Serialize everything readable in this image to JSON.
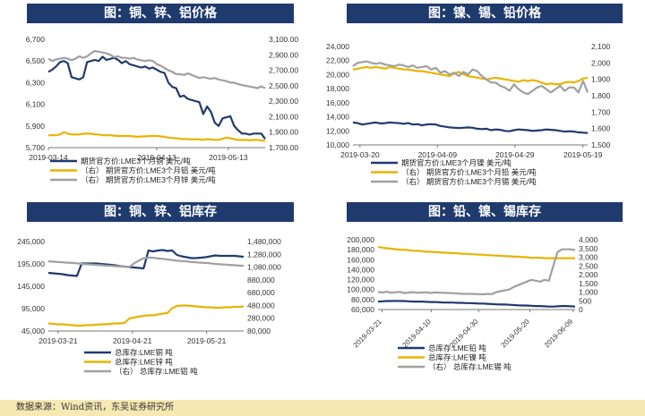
{
  "source_text": "数据来源：Wind资讯，东吴证券研究所",
  "colors": {
    "header_bg": "#1f3b6e",
    "navy": "#1f3b6e",
    "gold": "#e8b400",
    "gray": "#a0a0a0"
  },
  "chart_data": [
    {
      "id": "c1",
      "type": "line",
      "title": "图：铜、锌、铝价格",
      "x_ticks": [
        "2019-03-14",
        "2019-04-13",
        "2019-05-13"
      ],
      "y_left": {
        "min": 5700,
        "max": 6700,
        "ticks": [
          "6,700",
          "6,500",
          "6,300",
          "6,100",
          "5,900",
          "5,700"
        ]
      },
      "y_right": {
        "min": 1700,
        "max": 3100,
        "ticks": [
          "3,100.00",
          "2,900.00",
          "2,700.00",
          "2,500.00",
          "2,300.00",
          "2,100.00",
          "1,900.00",
          "1,700.00"
        ]
      },
      "legend": [
        "期货官方价:LME3个月铜  美元/吨",
        "（右）  期货官方价:LME3个月铝  美元/吨",
        "（右）  期货官方价:LME3个月锌  美元/吨"
      ],
      "series": [
        {
          "name": "期货官方价:LME3个月铜  美元/吨",
          "axis": "left",
          "color": "navy",
          "values": [
            6400,
            6420,
            6450,
            6490,
            6500,
            6480,
            6350,
            6340,
            6330,
            6350,
            6490,
            6500,
            6510,
            6500,
            6540,
            6510,
            6520,
            6530,
            6510,
            6480,
            6500,
            6470,
            6460,
            6450,
            6440,
            6450,
            6430,
            6440,
            6420,
            6400,
            6390,
            6300,
            6260,
            6250,
            6170,
            6180,
            6150,
            6140,
            6130,
            6120,
            6010,
            6080,
            6030,
            5930,
            5900,
            5970,
            5980,
            5990,
            5900,
            5860,
            5830,
            5830,
            5820,
            5830,
            5830,
            5830,
            5780
          ]
        },
        {
          "name": "（右）  期货官方价:LME3个月铝  美元/吨",
          "axis": "right",
          "color": "gold",
          "values": [
            1860,
            1860,
            1860,
            1870,
            1900,
            1880,
            1870,
            1870,
            1870,
            1880,
            1880,
            1880,
            1870,
            1870,
            1860,
            1860,
            1860,
            1855,
            1850,
            1850,
            1850,
            1850,
            1845,
            1840,
            1845,
            1845,
            1850,
            1850,
            1850,
            1845,
            1840,
            1830,
            1825,
            1820,
            1815,
            1810,
            1810,
            1805,
            1810,
            1805,
            1800,
            1810,
            1805,
            1800,
            1800,
            1815,
            1830,
            1820,
            1810,
            1800,
            1800,
            1800,
            1795,
            1800,
            1800,
            1790,
            1790
          ]
        },
        {
          "name": "（右）  期货官方价:LME3个月锌  美元/吨",
          "axis": "right",
          "color": "gray",
          "values": [
            2850,
            2820,
            2840,
            2850,
            2860,
            2850,
            2830,
            2850,
            2880,
            2860,
            2880,
            2920,
            2950,
            2940,
            2930,
            2920,
            2900,
            2870,
            2880,
            2860,
            2860,
            2850,
            2860,
            2840,
            2830,
            2820,
            2830,
            2820,
            2780,
            2760,
            2730,
            2700,
            2680,
            2650,
            2650,
            2640,
            2660,
            2640,
            2620,
            2600,
            2610,
            2600,
            2590,
            2600,
            2580,
            2570,
            2560,
            2540,
            2540,
            2520,
            2510,
            2500,
            2490,
            2480,
            2470,
            2490,
            2470
          ]
        }
      ]
    },
    {
      "id": "c2",
      "type": "line",
      "title": "图：镍、锡、铅价格",
      "x_ticks": [
        "2019-03-20",
        "2019-04-09",
        "2019-04-29",
        "2019-05-19"
      ],
      "y_left": {
        "min": 10000,
        "max": 24000,
        "ticks": [
          "24,000",
          "22,000",
          "20,000",
          "18,000",
          "16,000",
          "14,000",
          "12,000",
          "10,000"
        ]
      },
      "y_right": {
        "min": 1500,
        "max": 2100,
        "ticks": [
          "2,100",
          "2,000",
          "1,900",
          "1,800",
          "1,700",
          "1,600",
          "1,500"
        ]
      },
      "legend": [
        "期货官方价:LME3个月镍  美元/吨",
        "（右）  期货官方价:LME3个月铅  美元/吨",
        "（右）  期货官方价:LME3个月锡  美元/吨"
      ],
      "series": [
        {
          "name": "期货官方价:LME3个月镍  美元/吨",
          "axis": "left",
          "color": "navy",
          "values": [
            13200,
            13100,
            12900,
            13000,
            13100,
            13200,
            13050,
            13100,
            13200,
            13150,
            13100,
            13000,
            13100,
            12900,
            12950,
            12800,
            12900,
            12950,
            12900,
            12700,
            12600,
            12500,
            12450,
            12400,
            12450,
            12500,
            12450,
            12300,
            12250,
            12300,
            12100,
            12200,
            12150,
            12000,
            11950,
            12100,
            12200,
            12150,
            12100,
            12000,
            12050,
            12100,
            12200,
            12150,
            12100,
            12000,
            11900,
            11950,
            11900,
            11800,
            11750,
            11700
          ]
        },
        {
          "name": "（右）  期货官方价:LME3个月铅  美元/吨",
          "axis": "right",
          "color": "gold",
          "values": [
            1960,
            1965,
            1970,
            1975,
            1970,
            1975,
            1970,
            1965,
            1975,
            1970,
            1965,
            1960,
            1960,
            1955,
            1950,
            1950,
            1945,
            1940,
            1935,
            1930,
            1925,
            1920,
            1935,
            1945,
            1930,
            1920,
            1915,
            1910,
            1905,
            1900,
            1905,
            1910,
            1905,
            1900,
            1895,
            1890,
            1885,
            1895,
            1890,
            1895,
            1890,
            1880,
            1870,
            1875,
            1870,
            1870,
            1880,
            1885,
            1880,
            1890,
            1905,
            1910
          ]
        },
        {
          "name": "（右）  期货官方价:LME3个月锡  美元/吨",
          "axis": "right",
          "color": "gray",
          "values": [
            1980,
            2000,
            2005,
            2010,
            2000,
            1995,
            2000,
            1990,
            1985,
            1980,
            1990,
            1985,
            1975,
            1985,
            1970,
            1975,
            1980,
            1960,
            1970,
            1940,
            1950,
            1930,
            1940,
            1920,
            1945,
            1930,
            1960,
            1950,
            1920,
            1900,
            1880,
            1880,
            1860,
            1850,
            1830,
            1870,
            1840,
            1820,
            1810,
            1830,
            1850,
            1860,
            1840,
            1820,
            1840,
            1860,
            1830,
            1850,
            1850,
            1820,
            1890,
            1820
          ]
        }
      ]
    },
    {
      "id": "c3",
      "type": "line",
      "title": "图：铜、锌、铝库存",
      "x_ticks": [
        "2019-03-21",
        "2019-04-21",
        "2019-05-21"
      ],
      "y_left": {
        "min": 45000,
        "max": 245000,
        "ticks": [
          "245,000",
          "195,000",
          "145,000",
          "95,000",
          "45,000"
        ]
      },
      "y_right": {
        "min": 80000,
        "max": 1480000,
        "ticks": [
          "1,480,000",
          "1,280,000",
          "1,080,000",
          "880,000",
          "680,000",
          "480,000",
          "280,000",
          "80,000"
        ]
      },
      "legend": [
        "总库存:LME铜  吨",
        "总库存:LME锌  吨",
        "（右）  总库存:LME铝  吨"
      ],
      "series": [
        {
          "name": "总库存:LME铜  吨",
          "axis": "left",
          "color": "navy",
          "values": [
            175000,
            174000,
            173000,
            172000,
            170000,
            169000,
            168000,
            196000,
            196000,
            196000,
            196000,
            195000,
            194000,
            193000,
            192000,
            190000,
            189000,
            188000,
            187000,
            186000,
            185000,
            225000,
            223000,
            225000,
            226000,
            224000,
            225000,
            215000,
            212000,
            210000,
            208000,
            208000,
            209000,
            210000,
            212000,
            214000,
            213000,
            213000,
            213000,
            213000,
            212000,
            211000
          ]
        },
        {
          "name": "总库存:LME锌  吨",
          "axis": "left",
          "color": "gold",
          "values": [
            62000,
            61000,
            60000,
            60000,
            59000,
            58000,
            57000,
            57000,
            58000,
            58000,
            59000,
            60000,
            60000,
            61000,
            62000,
            62000,
            63000,
            73000,
            75000,
            77000,
            79000,
            80000,
            80000,
            82000,
            84000,
            85000,
            96000,
            101000,
            102000,
            102000,
            101000,
            100000,
            99000,
            98000,
            98000,
            97000,
            97000,
            98000,
            98000,
            99000,
            99000,
            100000
          ]
        },
        {
          "name": "（右）  总库存:LME铝  吨",
          "axis": "right",
          "color": "gray",
          "values": [
            1170000,
            1165000,
            1160000,
            1155000,
            1150000,
            1145000,
            1140000,
            1130000,
            1125000,
            1120000,
            1115000,
            1110000,
            1105000,
            1100000,
            1095000,
            1090000,
            1085000,
            1080000,
            1140000,
            1180000,
            1220000,
            1230000,
            1225000,
            1215000,
            1210000,
            1200000,
            1190000,
            1180000,
            1175000,
            1170000,
            1160000,
            1155000,
            1150000,
            1145000,
            1140000,
            1130000,
            1125000,
            1120000,
            1115000,
            1110000,
            1105000,
            1100000
          ]
        }
      ]
    },
    {
      "id": "c4",
      "type": "line",
      "title": "图：铅、镍、锡库存",
      "x_ticks": [
        "2019-03-21",
        "2019-04-10",
        "2019-04-30",
        "2019-05-20",
        "2019-06-09"
      ],
      "y_left": {
        "min": 60000,
        "max": 200000,
        "ticks": [
          "200,000",
          "180,000",
          "160,000",
          "140,000",
          "120,000",
          "100,000",
          "80,000",
          "60,000"
        ]
      },
      "y_right": {
        "min": 0,
        "max": 4000,
        "ticks": [
          "4,000",
          "3,500",
          "3,000",
          "2,500",
          "2,000",
          "1,500",
          "1,000",
          "500",
          "0"
        ]
      },
      "legend": [
        "总库存:LME铅  吨",
        "总库存:LME镍  吨",
        "（右）  总库存:LME锡  吨"
      ],
      "series": [
        {
          "name": "总库存:LME铅  吨",
          "axis": "left",
          "color": "navy",
          "values": [
            76000,
            76500,
            77000,
            77000,
            77500,
            77000,
            77000,
            76500,
            76000,
            76000,
            76000,
            75500,
            75000,
            75000,
            74500,
            74000,
            74000,
            74000,
            73500,
            73500,
            73000,
            73000,
            72500,
            72000,
            72000,
            71500,
            71000,
            70500,
            70000,
            70000,
            69500,
            69000,
            68500,
            68000,
            68000,
            67500,
            67000,
            67000,
            66500,
            66000,
            66000,
            66500,
            67000,
            67000,
            66500,
            66000
          ]
        },
        {
          "name": "总库存:LME镍  吨",
          "axis": "left",
          "color": "gold",
          "values": [
            186000,
            184000,
            183000,
            182000,
            181000,
            180000,
            180000,
            179000,
            178000,
            178000,
            177000,
            176000,
            176000,
            175000,
            175000,
            174000,
            174000,
            173000,
            173000,
            172000,
            172000,
            171000,
            171000,
            170000,
            170000,
            169000,
            169000,
            168000,
            168000,
            167000,
            167000,
            166000,
            166000,
            165000,
            165000,
            164000,
            164000,
            164000,
            163000,
            163000,
            163000,
            163000,
            163000,
            163000,
            163000,
            163000
          ]
        },
        {
          "name": "（右）  总库存:LME锡  吨",
          "axis": "right",
          "color": "gray",
          "values": [
            1000,
            980,
            1020,
            960,
            990,
            1010,
            950,
            970,
            1000,
            960,
            980,
            990,
            950,
            980,
            970,
            960,
            950,
            940,
            930,
            900,
            900,
            900,
            890,
            880,
            870,
            900,
            880,
            1000,
            1050,
            1100,
            1150,
            1300,
            1400,
            1500,
            1600,
            1700,
            1650,
            1600,
            1700,
            1650,
            2500,
            3300,
            3450,
            3450,
            3450,
            3400
          ]
        }
      ]
    }
  ]
}
